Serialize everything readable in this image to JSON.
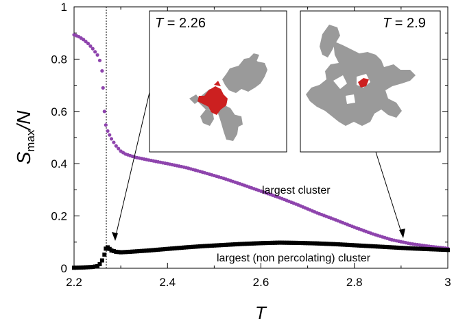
{
  "chart_data": {
    "type": "scatter",
    "xlabel": "T",
    "ylabel": {
      "main": "S",
      "sub": "max",
      "tail": "/N"
    },
    "xlim": [
      2.2,
      3.0
    ],
    "ylim": [
      0,
      1
    ],
    "x_ticks": [
      "2.2",
      "2.4",
      "2.6",
      "2.8",
      "3"
    ],
    "y_ticks": [
      "0",
      "0.2",
      "0.4",
      "0.6",
      "0.8",
      "1"
    ],
    "critical_line_x": 2.269,
    "colors": {
      "largest": "#8e44ad",
      "non_percolating": "#000000",
      "cluster_gray": "#9a9a9a",
      "cluster_red": "#cc2020"
    },
    "series": [
      {
        "name": "largest cluster",
        "marker": "circle",
        "points": [
          [
            2.2,
            0.893
          ],
          [
            2.21,
            0.886
          ],
          [
            2.22,
            0.875
          ],
          [
            2.23,
            0.86
          ],
          [
            2.24,
            0.84
          ],
          [
            2.25,
            0.816
          ],
          [
            2.255,
            0.795
          ],
          [
            2.26,
            0.755
          ],
          [
            2.262,
            0.69
          ],
          [
            2.265,
            0.6
          ],
          [
            2.268,
            0.548
          ],
          [
            2.272,
            0.525
          ],
          [
            2.28,
            0.495
          ],
          [
            2.29,
            0.468
          ],
          [
            2.3,
            0.448
          ],
          [
            2.31,
            0.437
          ],
          [
            2.33,
            0.425
          ],
          [
            2.36,
            0.414
          ],
          [
            2.4,
            0.4
          ],
          [
            2.44,
            0.385
          ],
          [
            2.48,
            0.365
          ],
          [
            2.52,
            0.344
          ],
          [
            2.56,
            0.32
          ],
          [
            2.6,
            0.295
          ],
          [
            2.64,
            0.27
          ],
          [
            2.68,
            0.242
          ],
          [
            2.72,
            0.212
          ],
          [
            2.76,
            0.185
          ],
          [
            2.8,
            0.157
          ],
          [
            2.84,
            0.131
          ],
          [
            2.88,
            0.109
          ],
          [
            2.92,
            0.094
          ],
          [
            2.96,
            0.084
          ],
          [
            3.0,
            0.076
          ]
        ]
      },
      {
        "name": "largest (non percolating) cluster",
        "marker": "square",
        "points": [
          [
            2.2,
            0.002
          ],
          [
            2.22,
            0.003
          ],
          [
            2.24,
            0.005
          ],
          [
            2.25,
            0.008
          ],
          [
            2.255,
            0.016
          ],
          [
            2.26,
            0.03
          ],
          [
            2.265,
            0.052
          ],
          [
            2.268,
            0.075
          ],
          [
            2.272,
            0.08
          ],
          [
            2.28,
            0.068
          ],
          [
            2.29,
            0.063
          ],
          [
            2.3,
            0.061
          ],
          [
            2.32,
            0.063
          ],
          [
            2.36,
            0.068
          ],
          [
            2.4,
            0.074
          ],
          [
            2.44,
            0.08
          ],
          [
            2.48,
            0.085
          ],
          [
            2.52,
            0.089
          ],
          [
            2.56,
            0.093
          ],
          [
            2.6,
            0.096
          ],
          [
            2.64,
            0.098
          ],
          [
            2.68,
            0.097
          ],
          [
            2.72,
            0.095
          ],
          [
            2.76,
            0.092
          ],
          [
            2.8,
            0.088
          ],
          [
            2.84,
            0.084
          ],
          [
            2.88,
            0.08
          ],
          [
            2.92,
            0.076
          ],
          [
            2.96,
            0.073
          ],
          [
            3.0,
            0.07
          ]
        ]
      }
    ],
    "annotations": [
      {
        "text": "largest cluster"
      },
      {
        "text": "largest (non percolating) cluster"
      }
    ],
    "insets": [
      {
        "title": "T = 2.26",
        "title_var": "T",
        "title_value": " = 2.26"
      },
      {
        "title": "T = 2.9",
        "title_var": "T",
        "title_value": " = 2.9"
      }
    ]
  }
}
